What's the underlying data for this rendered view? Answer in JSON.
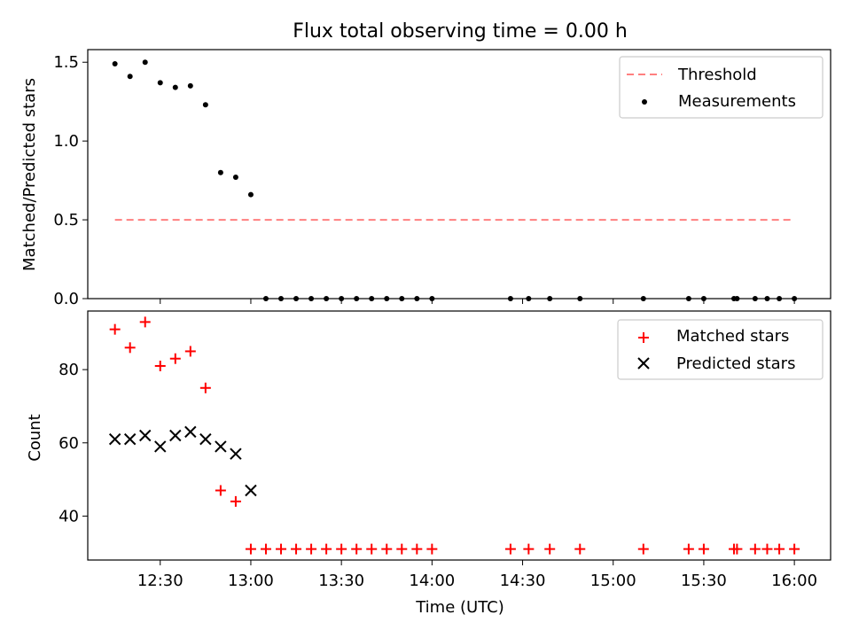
{
  "chart_data": [
    {
      "type": "scatter",
      "title": "Flux total observing time = 0.00 h",
      "ylabel": "Matched/Predicted stars",
      "xlabel": "",
      "ylim": [
        0,
        1.58
      ],
      "yticks": [
        0.0,
        0.5,
        1.0,
        1.5
      ],
      "ytick_labels": [
        "0.0",
        "0.5",
        "1.0",
        "1.5"
      ],
      "xlim": [
        "12:06",
        "16:12"
      ],
      "legend_position": "top-right",
      "threshold": {
        "name": "Threshold",
        "y": 0.5,
        "x_start": "12:15",
        "x_end": "16:00",
        "color": "#ff7f7f"
      },
      "series": [
        {
          "name": "Measurements",
          "marker": "dot",
          "color": "#000000",
          "x": [
            "12:15",
            "12:20",
            "12:25",
            "12:30",
            "12:35",
            "12:40",
            "12:45",
            "12:50",
            "12:55",
            "13:00",
            "13:05",
            "13:10",
            "13:15",
            "13:20",
            "13:25",
            "13:30",
            "13:35",
            "13:40",
            "13:45",
            "13:50",
            "13:55",
            "14:00",
            "14:26",
            "14:32",
            "14:39",
            "14:49",
            "15:10",
            "15:25",
            "15:30",
            "15:40",
            "15:41",
            "15:47",
            "15:51",
            "15:55",
            "16:00"
          ],
          "y": [
            1.49,
            1.41,
            1.5,
            1.37,
            1.34,
            1.35,
            1.23,
            0.8,
            0.77,
            0.66,
            0,
            0,
            0,
            0,
            0,
            0,
            0,
            0,
            0,
            0,
            0,
            0,
            0,
            0,
            0,
            0,
            0,
            0,
            0,
            0,
            0,
            0,
            0,
            0,
            0
          ]
        }
      ]
    },
    {
      "type": "scatter",
      "ylabel": "Count",
      "xlabel": "Time (UTC)",
      "ylim": [
        28,
        96
      ],
      "yticks": [
        40,
        60,
        80
      ],
      "ytick_labels": [
        "40",
        "60",
        "80"
      ],
      "xlim": [
        "12:06",
        "16:12"
      ],
      "xticks": [
        "12:30",
        "13:00",
        "13:30",
        "14:00",
        "14:30",
        "15:00",
        "15:30",
        "16:00"
      ],
      "xtick_labels": [
        "12:30",
        "13:00",
        "13:30",
        "14:00",
        "14:30",
        "15:00",
        "15:30",
        "16:00"
      ],
      "legend_position": "top-right",
      "series": [
        {
          "name": "Matched stars",
          "marker": "plus",
          "color": "#ff0000",
          "x": [
            "12:15",
            "12:20",
            "12:25",
            "12:30",
            "12:35",
            "12:40",
            "12:45",
            "12:50",
            "12:55",
            "13:00",
            "13:05",
            "13:10",
            "13:15",
            "13:20",
            "13:25",
            "13:30",
            "13:35",
            "13:40",
            "13:45",
            "13:50",
            "13:55",
            "14:00",
            "14:26",
            "14:32",
            "14:39",
            "14:49",
            "15:10",
            "15:25",
            "15:30",
            "15:40",
            "15:41",
            "15:47",
            "15:51",
            "15:55",
            "16:00"
          ],
          "y": [
            91,
            86,
            93,
            81,
            83,
            85,
            75,
            47,
            44,
            31,
            31,
            31,
            31,
            31,
            31,
            31,
            31,
            31,
            31,
            31,
            31,
            31,
            31,
            31,
            31,
            31,
            31,
            31,
            31,
            31,
            31,
            31,
            31,
            31,
            31
          ]
        },
        {
          "name": "Predicted stars",
          "marker": "x",
          "color": "#000000",
          "x": [
            "12:15",
            "12:20",
            "12:25",
            "12:30",
            "12:35",
            "12:40",
            "12:45",
            "12:50",
            "12:55",
            "13:00"
          ],
          "y": [
            61,
            61,
            62,
            59,
            62,
            63,
            61,
            59,
            57,
            47
          ]
        }
      ]
    }
  ]
}
